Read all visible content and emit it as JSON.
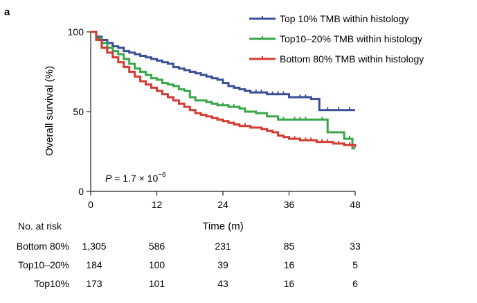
{
  "panel_label": "a",
  "chart_data": {
    "type": "line",
    "title": "",
    "xlabel": "Time (m)",
    "ylabel": "Overall survival (%)",
    "xlim": [
      0,
      48
    ],
    "ylim": [
      0,
      100
    ],
    "x_ticks": [
      "0",
      "12",
      "24",
      "36",
      "48"
    ],
    "y_ticks": [
      "0",
      "50",
      "100"
    ],
    "legend_position": "top-right",
    "annotation": {
      "p_symbol": "P",
      "p_text": " = 1.7 × 10",
      "p_exponent": "−6"
    },
    "series": [
      {
        "name": "Top 10% TMB within histology",
        "color": "#3a4f96",
        "points": [
          [
            0,
            100
          ],
          [
            1,
            97
          ],
          [
            2,
            95
          ],
          [
            3,
            93
          ],
          [
            4,
            91
          ],
          [
            5,
            90
          ],
          [
            6,
            88
          ],
          [
            7,
            87
          ],
          [
            8,
            86
          ],
          [
            9,
            85
          ],
          [
            10,
            84
          ],
          [
            11,
            83
          ],
          [
            12,
            82
          ],
          [
            13,
            81
          ],
          [
            14,
            80
          ],
          [
            15,
            78
          ],
          [
            16,
            77
          ],
          [
            17,
            76
          ],
          [
            18,
            75
          ],
          [
            19,
            74
          ],
          [
            20,
            73
          ],
          [
            21,
            72
          ],
          [
            22,
            71
          ],
          [
            23,
            70
          ],
          [
            24,
            68
          ],
          [
            25,
            66
          ],
          [
            26,
            65
          ],
          [
            27,
            64
          ],
          [
            28,
            63
          ],
          [
            29,
            62
          ],
          [
            30,
            62
          ],
          [
            32,
            61
          ],
          [
            34,
            61
          ],
          [
            36,
            59
          ],
          [
            38,
            59
          ],
          [
            40,
            58
          ],
          [
            41,
            58
          ],
          [
            41.5,
            51
          ],
          [
            44,
            51
          ],
          [
            46,
            51
          ],
          [
            48,
            51
          ]
        ],
        "censor_x": [
          20,
          21,
          28,
          30,
          31,
          32,
          33,
          34,
          35,
          38,
          39,
          40,
          43,
          45,
          47
        ]
      },
      {
        "name": "Top10–20% TMB within histology",
        "color": "#3aa64a",
        "points": [
          [
            0,
            100
          ],
          [
            1,
            96
          ],
          [
            2,
            93
          ],
          [
            3,
            90
          ],
          [
            4,
            88
          ],
          [
            5,
            86
          ],
          [
            6,
            83
          ],
          [
            7,
            80
          ],
          [
            8,
            77
          ],
          [
            9,
            75
          ],
          [
            10,
            73
          ],
          [
            11,
            71
          ],
          [
            12,
            70
          ],
          [
            13,
            68
          ],
          [
            14,
            67
          ],
          [
            15,
            66
          ],
          [
            16,
            64
          ],
          [
            17,
            63
          ],
          [
            18,
            59
          ],
          [
            19,
            57
          ],
          [
            20,
            57
          ],
          [
            21,
            56
          ],
          [
            22,
            55
          ],
          [
            23,
            54
          ],
          [
            24,
            54
          ],
          [
            25,
            53
          ],
          [
            27,
            52
          ],
          [
            28,
            50
          ],
          [
            30,
            49
          ],
          [
            32,
            47
          ],
          [
            34,
            45
          ],
          [
            36,
            45
          ],
          [
            38,
            45
          ],
          [
            40,
            45
          ],
          [
            41,
            45
          ],
          [
            42,
            45
          ],
          [
            43,
            37
          ],
          [
            44,
            37
          ],
          [
            46,
            33
          ],
          [
            47,
            33
          ],
          [
            47.5,
            27
          ],
          [
            48,
            27
          ]
        ],
        "censor_x": [
          22,
          23,
          24,
          25,
          26,
          27,
          30,
          34,
          35,
          37,
          38,
          39,
          42,
          47
        ]
      },
      {
        "name": "Bottom 80% TMB within histology",
        "color": "#d33a30",
        "points": [
          [
            0,
            100
          ],
          [
            1,
            95
          ],
          [
            2,
            90
          ],
          [
            3,
            87
          ],
          [
            4,
            84
          ],
          [
            5,
            81
          ],
          [
            6,
            78
          ],
          [
            7,
            75
          ],
          [
            8,
            72
          ],
          [
            9,
            69
          ],
          [
            10,
            67
          ],
          [
            11,
            65
          ],
          [
            12,
            63
          ],
          [
            13,
            61
          ],
          [
            14,
            59
          ],
          [
            15,
            57
          ],
          [
            16,
            55
          ],
          [
            17,
            53
          ],
          [
            18,
            51
          ],
          [
            19,
            49
          ],
          [
            20,
            48
          ],
          [
            21,
            47
          ],
          [
            22,
            46
          ],
          [
            23,
            45
          ],
          [
            24,
            44
          ],
          [
            25,
            43
          ],
          [
            26,
            42
          ],
          [
            27,
            41
          ],
          [
            28,
            41
          ],
          [
            29,
            40
          ],
          [
            30,
            40
          ],
          [
            31,
            39
          ],
          [
            32,
            38
          ],
          [
            33,
            37
          ],
          [
            34,
            35
          ],
          [
            35,
            34
          ],
          [
            36,
            33
          ],
          [
            37,
            33
          ],
          [
            38,
            32
          ],
          [
            40,
            32
          ],
          [
            41,
            31
          ],
          [
            42,
            31
          ],
          [
            43,
            31
          ],
          [
            44,
            30
          ],
          [
            45,
            30
          ],
          [
            46,
            29
          ],
          [
            47,
            29
          ],
          [
            48,
            28
          ]
        ],
        "censor_x": [
          24,
          25,
          26,
          27,
          28,
          29,
          33,
          36,
          37,
          38,
          39,
          40,
          41,
          42,
          43,
          44,
          45,
          46,
          47,
          48
        ]
      }
    ],
    "risk_table": {
      "header": "No. at risk",
      "rows": [
        {
          "label": "Bottom 80%",
          "counts": [
            "1,305",
            "586",
            "231",
            "85",
            "33"
          ]
        },
        {
          "label": "Top10–20%",
          "counts": [
            "184",
            "100",
            "39",
            "16",
            "5"
          ]
        },
        {
          "label": "Top10%",
          "counts": [
            "173",
            "101",
            "43",
            "16",
            "6"
          ]
        }
      ]
    }
  }
}
